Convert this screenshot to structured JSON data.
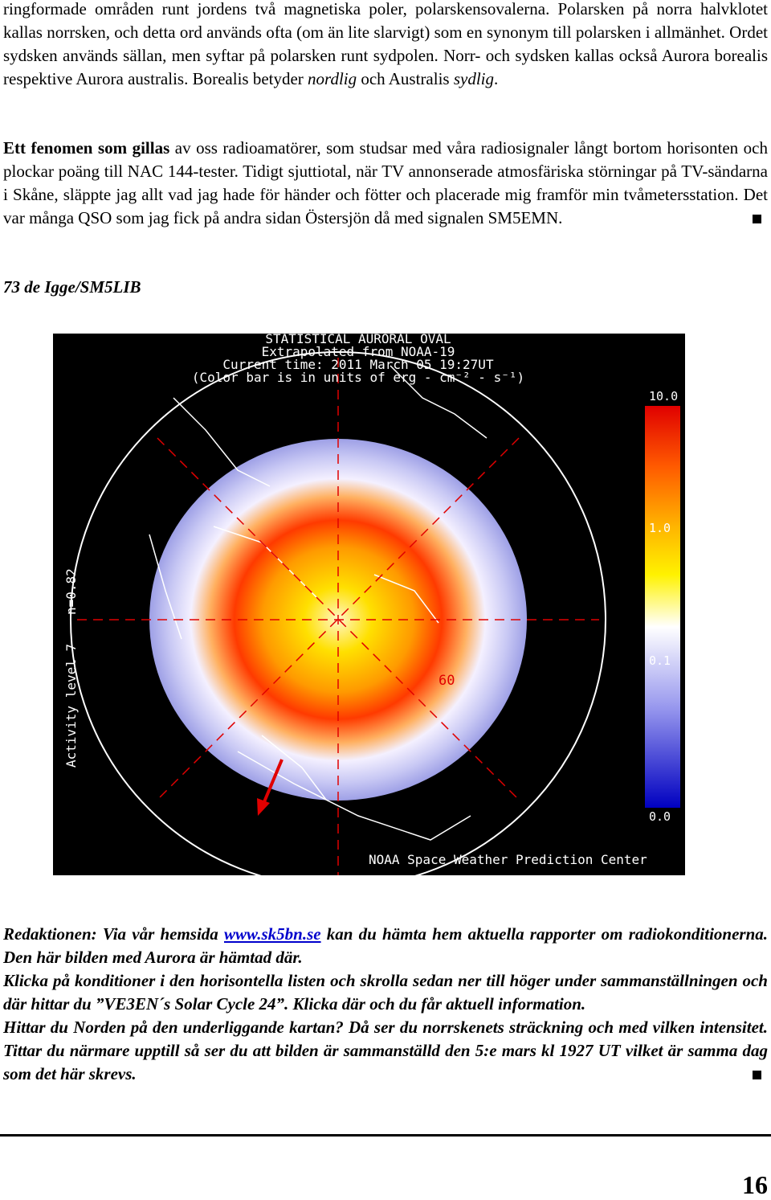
{
  "intro": [
    "ringformade områden runt jordens två magnetiska poler, polarskensovalerna. Polarsken på norra halvklotet kallas norrsken, och detta ord används ofta (om än lite slarvigt) som en synonym till polarsken i allmänhet. Ordet sydsken används sällan, men syftar på polarsken runt sydpolen. Norr- och sydsken kallas också Aurora borealis respektive Aurora australis. Borealis betyder ",
    "nordlig",
    " och Australis ",
    "sydlig",
    "."
  ],
  "story": [
    "Ett fenomen som gillas",
    " av oss radioamatörer, som studsar med våra radiosignaler långt bortom horisonten och plockar poäng till NAC 144-tester. Tidigt sjuttiotal, när TV annonserade atmosfäriska störningar på TV-sändarna i Skåne, släppte jag allt vad jag hade för händer och fötter och placerade mig framför min tvåmetersstation. Det var många QSO som jag fick på andra sidan Östersjön då med signalen SM5EMN."
  ],
  "signature": "73 de Igge/SM5LIB",
  "figure": {
    "title_lines": [
      "STATISTICAL AURORAL OVAL",
      "Extrapolated from NOAA-19",
      "Current time: 2011 March 05 19:27UT",
      "(Color bar is in units of erg - cm⁻² - s⁻¹)"
    ],
    "colorbar_labels": [
      "10.0",
      "1.0",
      "0.1",
      "0.0"
    ],
    "n_label": "n=0.82",
    "activity": "Activity level 7",
    "latitude": "60",
    "credit": "NOAA Space Weather Prediction Center"
  },
  "editorial": {
    "line1": [
      "Redaktionen: Via vår hemsida ",
      "www.sk5bn.se",
      " kan du hämta hem aktuella rapporter om radiokonditionerna. Den här bilden med Aurora är hämtad där."
    ],
    "line2": "Klicka på konditioner i den horisontella listen och skrolla sedan ner till höger under sammanställningen och där hittar du ”VE3EN´s Solar Cycle 24”. Klicka där och du får aktuell information.",
    "line3": "Hittar du Norden på den underliggande kartan? Då ser du norrskenets sträckning och med vilken intensitet. Tittar du närmare upptill så ser du att bilden är sammanställd den 5:e mars kl 1927 UT vilket är samma dag som det här skrevs."
  },
  "page_number": "16"
}
